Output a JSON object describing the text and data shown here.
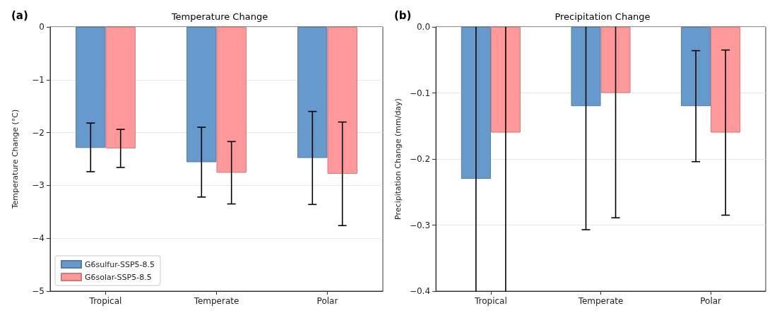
{
  "chart_data": [
    {
      "type": "bar",
      "title": "Temperature Change",
      "ylabel": "Temperature Change (°C)",
      "annotations": [
        "(a)"
      ],
      "categories": [
        "Tropical",
        "Temperate",
        "Polar"
      ],
      "series": [
        {
          "name": "G6sulfur-SSP5-8.5",
          "color": "#6699cc",
          "values": [
            -2.29,
            -2.56,
            -2.48
          ],
          "errors": [
            [
              -2.74,
              -1.82
            ],
            [
              -3.22,
              -1.9
            ],
            [
              -3.36,
              -1.6
            ]
          ]
        },
        {
          "name": "G6solar-SSP5-8.5",
          "color": "#ff9999",
          "values": [
            -2.3,
            -2.76,
            -2.78
          ],
          "errors": [
            [
              -2.66,
              -1.94
            ],
            [
              -3.35,
              -2.17
            ],
            [
              -3.76,
              -1.8
            ]
          ]
        }
      ],
      "ylim": [
        -5,
        0
      ],
      "yticks": [
        {
          "value": -5,
          "label": "−5"
        },
        {
          "value": -4,
          "label": "−4"
        },
        {
          "value": -3,
          "label": "−3"
        },
        {
          "value": -2,
          "label": "−2"
        },
        {
          "value": -1,
          "label": "−1"
        },
        0
      ],
      "grid": "y",
      "legend": "bottom left"
    },
    {
      "type": "bar",
      "title": "Precipitation Change",
      "ylabel": "Precipitation Change (mm/day)",
      "annotations": [
        "(b)"
      ],
      "categories": [
        "Tropical",
        "Temperate",
        "Polar"
      ],
      "series": [
        {
          "color": "#6699cc",
          "values": [
            -0.23,
            -0.12,
            -0.12
          ],
          "errors": [
            [
              -0.4,
              0
            ],
            [
              -0.307,
              0
            ],
            [
              -0.204,
              -0.036
            ]
          ]
        },
        {
          "color": "#ff9999",
          "values": [
            -0.16,
            -0.1,
            -0.16
          ],
          "errors": [
            [
              -0.4,
              0
            ],
            [
              -0.289,
              0
            ],
            [
              -0.285,
              -0.035
            ]
          ]
        }
      ],
      "ylim": [
        -0.4,
        0
      ],
      "yticks": [
        {
          "value": -0.4,
          "label": "−0.4"
        },
        {
          "value": -0.3,
          "label": "−0.3"
        },
        {
          "value": -0.2,
          "label": "−0.2"
        },
        {
          "value": -0.1,
          "label": "−0.1"
        },
        {
          "value": 0,
          "label": "0.0"
        }
      ],
      "grid": "y"
    }
  ]
}
